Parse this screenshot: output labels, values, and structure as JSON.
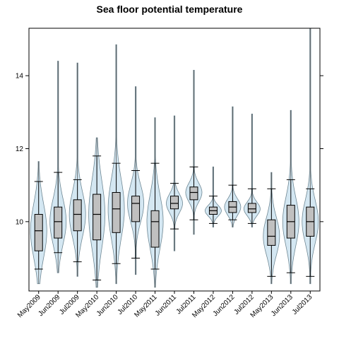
{
  "chart_data": {
    "type": "violin-box",
    "title": "Sea floor potential temperature",
    "xlabel": "",
    "ylabel": "",
    "ylim": [
      8.1,
      15.3
    ],
    "yticks": [
      10,
      12,
      14
    ],
    "categories": [
      "May2009",
      "Jun2009",
      "Jul2009",
      "May2010",
      "Jun2010",
      "Jul2010",
      "May2011",
      "Jun2011",
      "Jul2011",
      "May2012",
      "Jun2012",
      "Jul2012",
      "May2013",
      "Jun2013",
      "Jul2013"
    ],
    "boxes": [
      {
        "whisker_low": 8.7,
        "q1": 9.2,
        "median": 9.75,
        "q3": 10.2,
        "whisker_high": 11.1,
        "min": 8.3,
        "max": 11.65
      },
      {
        "whisker_low": 9.15,
        "q1": 9.55,
        "median": 10.0,
        "q3": 10.4,
        "whisker_high": 11.35,
        "min": 8.6,
        "max": 14.4
      },
      {
        "whisker_low": 8.9,
        "q1": 9.75,
        "median": 10.2,
        "q3": 10.6,
        "whisker_high": 11.15,
        "min": 8.5,
        "max": 14.35
      },
      {
        "whisker_low": 8.4,
        "q1": 9.5,
        "median": 10.2,
        "q3": 10.75,
        "whisker_high": 11.8,
        "min": 8.2,
        "max": 12.3
      },
      {
        "whisker_low": 8.85,
        "q1": 9.7,
        "median": 10.35,
        "q3": 10.8,
        "whisker_high": 11.6,
        "min": 8.3,
        "max": 14.85
      },
      {
        "whisker_low": 9.0,
        "q1": 10.0,
        "median": 10.5,
        "q3": 10.7,
        "whisker_high": 11.4,
        "min": 8.55,
        "max": 13.7
      },
      {
        "whisker_low": 8.7,
        "q1": 9.3,
        "median": 10.0,
        "q3": 10.3,
        "whisker_high": 11.6,
        "min": 8.2,
        "max": 12.85
      },
      {
        "whisker_low": 9.8,
        "q1": 10.35,
        "median": 10.5,
        "q3": 10.7,
        "whisker_high": 11.05,
        "min": 9.2,
        "max": 12.9
      },
      {
        "whisker_low": 10.05,
        "q1": 10.6,
        "median": 10.8,
        "q3": 10.95,
        "whisker_high": 11.5,
        "min": 9.65,
        "max": 14.15
      },
      {
        "whisker_low": 9.95,
        "q1": 10.2,
        "median": 10.3,
        "q3": 10.4,
        "whisker_high": 10.7,
        "min": 9.85,
        "max": 11.5
      },
      {
        "whisker_low": 10.05,
        "q1": 10.25,
        "median": 10.4,
        "q3": 10.55,
        "whisker_high": 11.0,
        "min": 9.85,
        "max": 13.15
      },
      {
        "whisker_low": 9.95,
        "q1": 10.25,
        "median": 10.35,
        "q3": 10.5,
        "whisker_high": 10.9,
        "min": 9.85,
        "max": 12.95
      },
      {
        "whisker_low": 8.5,
        "q1": 9.35,
        "median": 9.6,
        "q3": 10.05,
        "whisker_high": 10.9,
        "min": 8.3,
        "max": 11.35
      },
      {
        "whisker_low": 8.6,
        "q1": 9.55,
        "median": 10.0,
        "q3": 10.45,
        "whisker_high": 11.15,
        "min": 8.3,
        "max": 13.05
      },
      {
        "whisker_low": 8.5,
        "q1": 9.6,
        "median": 10.0,
        "q3": 10.4,
        "whisker_high": 10.9,
        "min": 8.3,
        "max": 15.3
      }
    ],
    "grid": false,
    "colors": {
      "box_fill": "#c0c0c0",
      "violin_fill": "#d4e7f2",
      "violin_stroke": "#6f8894",
      "line": "#000000",
      "outlier_line": "#555555"
    }
  }
}
